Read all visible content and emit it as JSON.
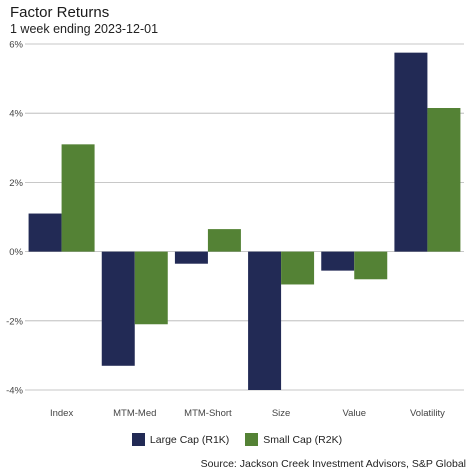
{
  "header": {
    "title": "Factor Returns",
    "subtitle": "1 week ending 2023-12-01"
  },
  "legend": {
    "items": [
      {
        "label": "Large Cap (R1K)",
        "color": "#222a55"
      },
      {
        "label": "Small Cap (R2K)",
        "color": "#548235"
      }
    ]
  },
  "footer": {
    "source": "Source: Jackson Creek Investment Advisors, S&P Global"
  },
  "chart_data": {
    "type": "bar",
    "categories": [
      "Index",
      "MTM-Med",
      "MTM-Short",
      "Size",
      "Value",
      "Volatility"
    ],
    "series": [
      {
        "name": "Large Cap (R1K)",
        "color": "#222a55",
        "values": [
          1.1,
          -3.3,
          -0.35,
          -4.0,
          -0.55,
          5.75
        ]
      },
      {
        "name": "Small Cap (R2K)",
        "color": "#548235",
        "values": [
          3.1,
          -2.1,
          0.65,
          -0.95,
          -0.8,
          4.15
        ]
      }
    ],
    "ylim": [
      -4,
      6
    ],
    "yticks": [
      -4,
      -2,
      0,
      2,
      4,
      6
    ],
    "ytick_labels": [
      "-4%",
      "-2%",
      "0%",
      "2%",
      "4%",
      "6%"
    ],
    "xlabel": "",
    "ylabel": "",
    "grid": "horizontal",
    "legend_position": "bottom"
  }
}
